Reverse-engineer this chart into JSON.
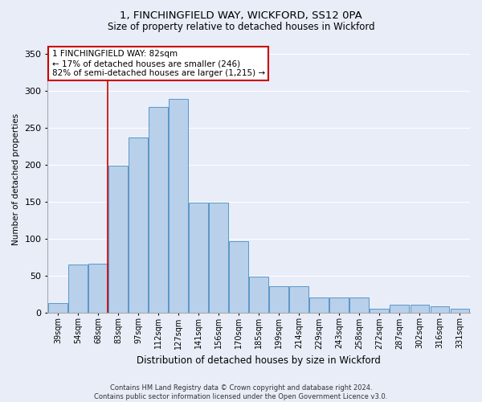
{
  "title1": "1, FINCHINGFIELD WAY, WICKFORD, SS12 0PA",
  "title2": "Size of property relative to detached houses in Wickford",
  "xlabel": "Distribution of detached houses by size in Wickford",
  "ylabel": "Number of detached properties",
  "categories": [
    "39sqm",
    "54sqm",
    "68sqm",
    "83sqm",
    "97sqm",
    "112sqm",
    "127sqm",
    "141sqm",
    "156sqm",
    "170sqm",
    "185sqm",
    "199sqm",
    "214sqm",
    "229sqm",
    "243sqm",
    "258sqm",
    "272sqm",
    "287sqm",
    "302sqm",
    "316sqm",
    "331sqm"
  ],
  "bar_values": [
    13,
    65,
    66,
    199,
    237,
    278,
    289,
    149,
    149,
    96,
    48,
    36,
    36,
    20,
    20,
    20,
    5,
    10,
    10,
    8,
    5
  ],
  "bar_color": "#b8d0ea",
  "bar_edge_color": "#5a96c8",
  "vline_x_idx": 2.5,
  "annotation_line1": "1 FINCHINGFIELD WAY: 82sqm",
  "annotation_line2": "← 17% of detached houses are smaller (246)",
  "annotation_line3": "82% of semi-detached houses are larger (1,215) →",
  "annotation_box_color": "#cc0000",
  "bg_color": "#e8edf8",
  "grid_color": "#ffffff",
  "footer1": "Contains HM Land Registry data © Crown copyright and database right 2024.",
  "footer2": "Contains public sector information licensed under the Open Government Licence v3.0.",
  "ylim": [
    0,
    360
  ],
  "yticks": [
    0,
    50,
    100,
    150,
    200,
    250,
    300,
    350
  ],
  "title1_fontsize": 9.5,
  "title2_fontsize": 8.5,
  "xlabel_fontsize": 8.5,
  "ylabel_fontsize": 7.5,
  "tick_fontsize": 7,
  "footer_fontsize": 6,
  "annotation_fontsize": 7.5
}
